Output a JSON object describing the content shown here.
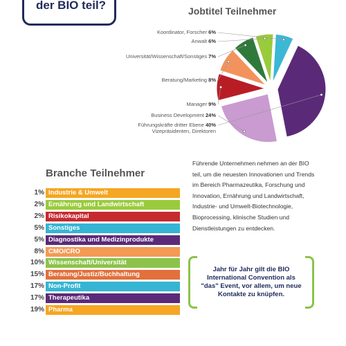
{
  "header": {
    "corner_text": "der BIO teil?"
  },
  "chart_data": [
    {
      "type": "pie",
      "title": "Jobtitel Teilnehmer",
      "slices": [
        {
          "label": "Koordinator, Forscher",
          "value": 6,
          "value_label": "6%",
          "color": "#3db7d6"
        },
        {
          "label": "Anwalt",
          "value": 6,
          "value_label": "6%",
          "color": "#9acb3c"
        },
        {
          "label": "Universität/Wissenschaft/Sonstiges",
          "value": 7,
          "value_label": "7%",
          "color": "#2f7a3b"
        },
        {
          "label": "Beratung/Marketing",
          "value": 8,
          "value_label": "8%",
          "color": "#f2935e"
        },
        {
          "label": "Manager",
          "value": 9,
          "value_label": "9%",
          "color": "#b81d26"
        },
        {
          "label": "Business Development",
          "value": 24,
          "value_label": "24%",
          "color": "#c99bd0"
        },
        {
          "label": "Führungskräfte dritter Ebene",
          "label2": "Vizepräsidenten, Direktoren",
          "value": 40,
          "value_label": "40%",
          "color": "#5a2a78"
        }
      ]
    },
    {
      "type": "bar",
      "title": "Branche Teilnehmer",
      "categories": [
        "Industrie & Umwelt",
        "Ernährung und Landwirtschaft",
        "Risikokapital",
        "Sonstiges",
        "Diagnostika und Medizinprodukte",
        "CMO/CRO",
        "Wissenschaft/Universität",
        "Beratung/Justiz/Buchhaltung",
        "Non-Profit",
        "Therapeutika",
        "Pharma"
      ],
      "values": [
        1,
        2,
        2,
        5,
        5,
        8,
        10,
        15,
        17,
        17,
        19
      ],
      "value_labels": [
        "1%",
        "2%",
        "2%",
        "5%",
        "5%",
        "8%",
        "10%",
        "15%",
        "17%",
        "17%",
        "19%"
      ],
      "colors": [
        "#f5a623",
        "#9acb3c",
        "#c62a2f",
        "#35b5d3",
        "#5a2a78",
        "#f39a55",
        "#8bc34a",
        "#e2703a",
        "#35b5d3",
        "#5a2a78",
        "#f5a623"
      ]
    }
  ],
  "body_text": "Führende Unternehmen nehmen an der BIO teil, um die neuesten Innovationen und Trends im Bereich Pharmazeutika, Forschung und Innovation, Ernährung und Landwirtschaft, Industrie- und Umwelt-Biotechnologie, Bioprocessing, klinische Studien und Dienstleistungen zu entdecken.",
  "quote": "Jahr für Jahr gilt die BIO International Convention als \"das\" Event, vor allem, um neue Kontakte zu knüpfen."
}
